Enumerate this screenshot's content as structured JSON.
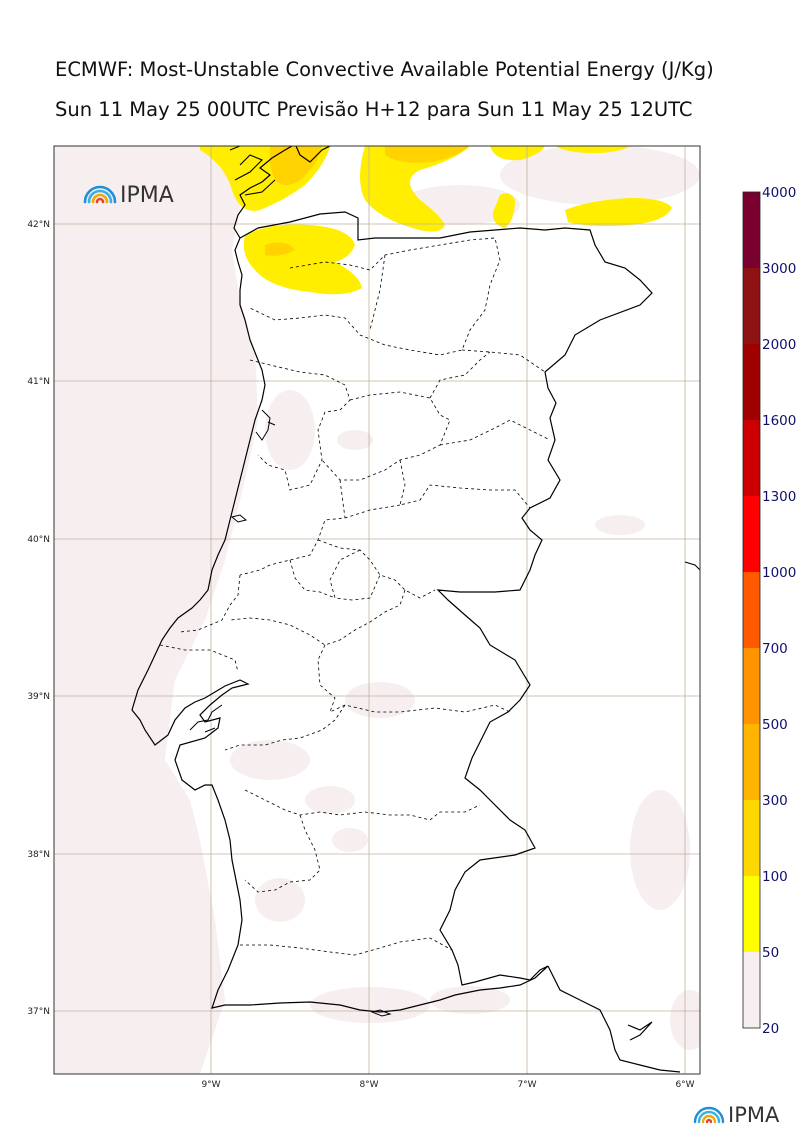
{
  "title_line1": "ECMWF: Most-Unstable Convective Available Potential Energy (J/Kg)",
  "title_line2": "Sun 11 May 25 00UTC Previsão H+12 para Sun 11 May 25 12UTC",
  "logo_text": "IPMA",
  "footer_logo_text": "IPMA",
  "lat_labels": [
    "42°N",
    "41°N",
    "40°N",
    "39°N",
    "38°N",
    "37°N"
  ],
  "lon_labels": [
    "9°W",
    "8°W",
    "7°W",
    "6°W"
  ],
  "colorbar": {
    "levels": [
      "20",
      "50",
      "100",
      "300",
      "500",
      "700",
      "1000",
      "1300",
      "1600",
      "2000",
      "3000",
      "4000"
    ],
    "colors": [
      "#f7eef0",
      "#ffff00",
      "#ffd700",
      "#ffb400",
      "#ff9400",
      "#ff5a00",
      "#ff0000",
      "#cc0000",
      "#a00000",
      "#8e1212",
      "#7a0030",
      "#5e1200"
    ]
  },
  "map_colors": {
    "ocean_tint": "#f7eef0",
    "cape_low": "#ffee00",
    "cape_mid": "#ffd200",
    "grid": "#c0b29e",
    "coast": "#000000"
  }
}
